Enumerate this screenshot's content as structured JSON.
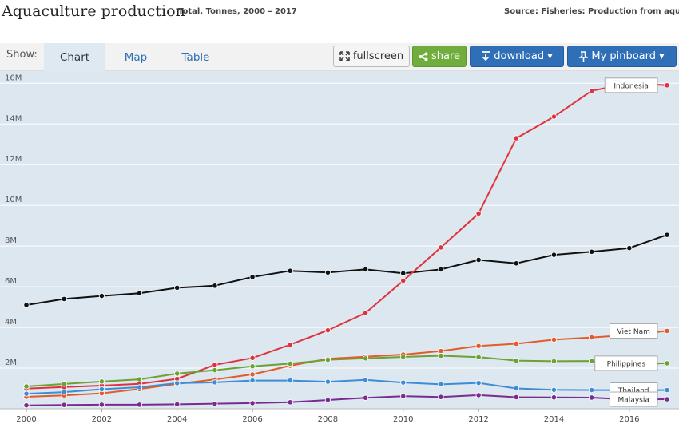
{
  "header": {
    "title": "Aquaculture production",
    "subtitle": "Total, Tonnes, 2000 – 2017",
    "source": "Source: Fisheries: Production from aquaculture"
  },
  "tabs": {
    "show_label": "Show:",
    "items": [
      "Chart",
      "Map",
      "Table"
    ],
    "active": "Chart"
  },
  "toolbar": {
    "fullscreen_label": "fullscreen",
    "share_label": "share",
    "download_label": "download ▾",
    "pinboard_label": "My pinboard ▾"
  },
  "colors": {
    "plot_bg": "#dde7ef",
    "grid": "#ffffff",
    "share_green": "#6fae3d",
    "button_blue": "#2f6fb7"
  },
  "chart_data": {
    "type": "line",
    "title": "",
    "xlabel": "",
    "ylabel": "",
    "x": [
      2000,
      2001,
      2002,
      2003,
      2004,
      2005,
      2006,
      2007,
      2008,
      2009,
      2010,
      2011,
      2012,
      2013,
      2014,
      2015,
      2016,
      2017
    ],
    "xticks": [
      "2000",
      "2002",
      "2004",
      "2006",
      "2008",
      "2010",
      "2012",
      "2014",
      "2016"
    ],
    "yticks": [
      {
        "value": 2000000,
        "label": "2M"
      },
      {
        "value": 4000000,
        "label": "4M"
      },
      {
        "value": 6000000,
        "label": "6M"
      },
      {
        "value": 8000000,
        "label": "8M"
      },
      {
        "value": 10000000,
        "label": "10M"
      },
      {
        "value": 12000000,
        "label": "12M"
      },
      {
        "value": 14000000,
        "label": "14M"
      },
      {
        "value": 16000000,
        "label": "16M"
      }
    ],
    "ylim": [
      0,
      16600000
    ],
    "grid": true,
    "series": [
      {
        "label_text": "",
        "color": "#111111",
        "values": [
          5100000,
          5400000,
          5550000,
          5680000,
          5950000,
          6050000,
          6480000,
          6780000,
          6700000,
          6850000,
          6660000,
          6850000,
          7320000,
          7150000,
          7570000,
          7720000,
          7900000,
          8550000
        ]
      },
      {
        "label_text": "Indonesia",
        "color": "#e0323c",
        "values": [
          990000,
          1070000,
          1140000,
          1230000,
          1470000,
          2160000,
          2500000,
          3150000,
          3860000,
          4710000,
          6300000,
          7930000,
          9600000,
          13300000,
          14360000,
          15630000,
          16000000,
          15900000
        ]
      },
      {
        "label_text": "Viet Nam",
        "color": "#e25b2a",
        "values": [
          590000,
          660000,
          760000,
          970000,
          1230000,
          1440000,
          1690000,
          2120000,
          2460000,
          2560000,
          2670000,
          2840000,
          3090000,
          3200000,
          3400000,
          3510000,
          3630000,
          3830000
        ]
      },
      {
        "label_text": "Philippines",
        "color": "#6ca133",
        "values": [
          1100000,
          1220000,
          1340000,
          1450000,
          1730000,
          1900000,
          2090000,
          2220000,
          2410000,
          2480000,
          2550000,
          2610000,
          2540000,
          2370000,
          2340000,
          2350000,
          2200000,
          2240000
        ]
      },
      {
        "label_text": "Thailand",
        "color": "#3c8dd6",
        "values": [
          740000,
          820000,
          960000,
          1060000,
          1260000,
          1300000,
          1390000,
          1390000,
          1330000,
          1420000,
          1290000,
          1200000,
          1270000,
          1000000,
          930000,
          920000,
          920000,
          920000
        ]
      },
      {
        "label_text": "Malaysia",
        "color": "#7a2c8e",
        "values": [
          170000,
          190000,
          200000,
          200000,
          220000,
          250000,
          280000,
          320000,
          430000,
          540000,
          620000,
          580000,
          670000,
          570000,
          560000,
          550000,
          460000,
          470000
        ]
      }
    ]
  }
}
